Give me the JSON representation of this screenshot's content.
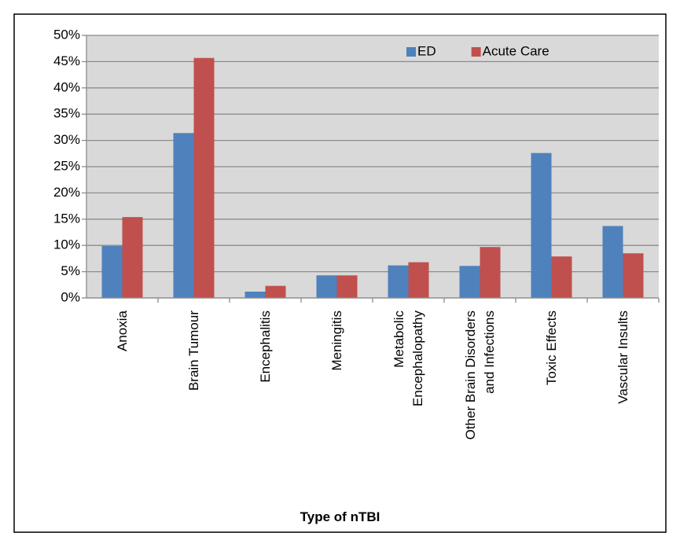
{
  "chart_data": {
    "type": "bar",
    "x_label": "Type of nTBI",
    "categories": [
      "Anoxia",
      "Brain Tumour",
      "Encephalitis",
      "Meningitis",
      "Metabolic\nEncephalopathy",
      "Other Brain Disorders\nand Infections",
      "Toxic Effects",
      "Vascular Insults"
    ],
    "series": [
      {
        "name": "ED",
        "color": "#4f81bd",
        "values": [
          9.9,
          31.4,
          1.2,
          4.3,
          6.2,
          6.1,
          27.6,
          13.7
        ]
      },
      {
        "name": "Acute Care",
        "color": "#c0504d",
        "values": [
          15.4,
          45.7,
          2.3,
          4.3,
          6.8,
          9.7,
          7.9,
          8.5
        ]
      }
    ],
    "ylim": [
      0,
      50
    ],
    "yticks": [
      {
        "value": 0,
        "label": "0%"
      },
      {
        "value": 5,
        "label": "5%"
      },
      {
        "value": 10,
        "label": "10%"
      },
      {
        "value": 15,
        "label": "15%"
      },
      {
        "value": 20,
        "label": "20%"
      },
      {
        "value": 25,
        "label": "25%"
      },
      {
        "value": 30,
        "label": "30%"
      },
      {
        "value": 35,
        "label": "35%"
      },
      {
        "value": 40,
        "label": "40%"
      },
      {
        "value": 45,
        "label": "45%"
      },
      {
        "value": 50,
        "label": "50%"
      }
    ],
    "grid": true,
    "legend": "top-right"
  }
}
